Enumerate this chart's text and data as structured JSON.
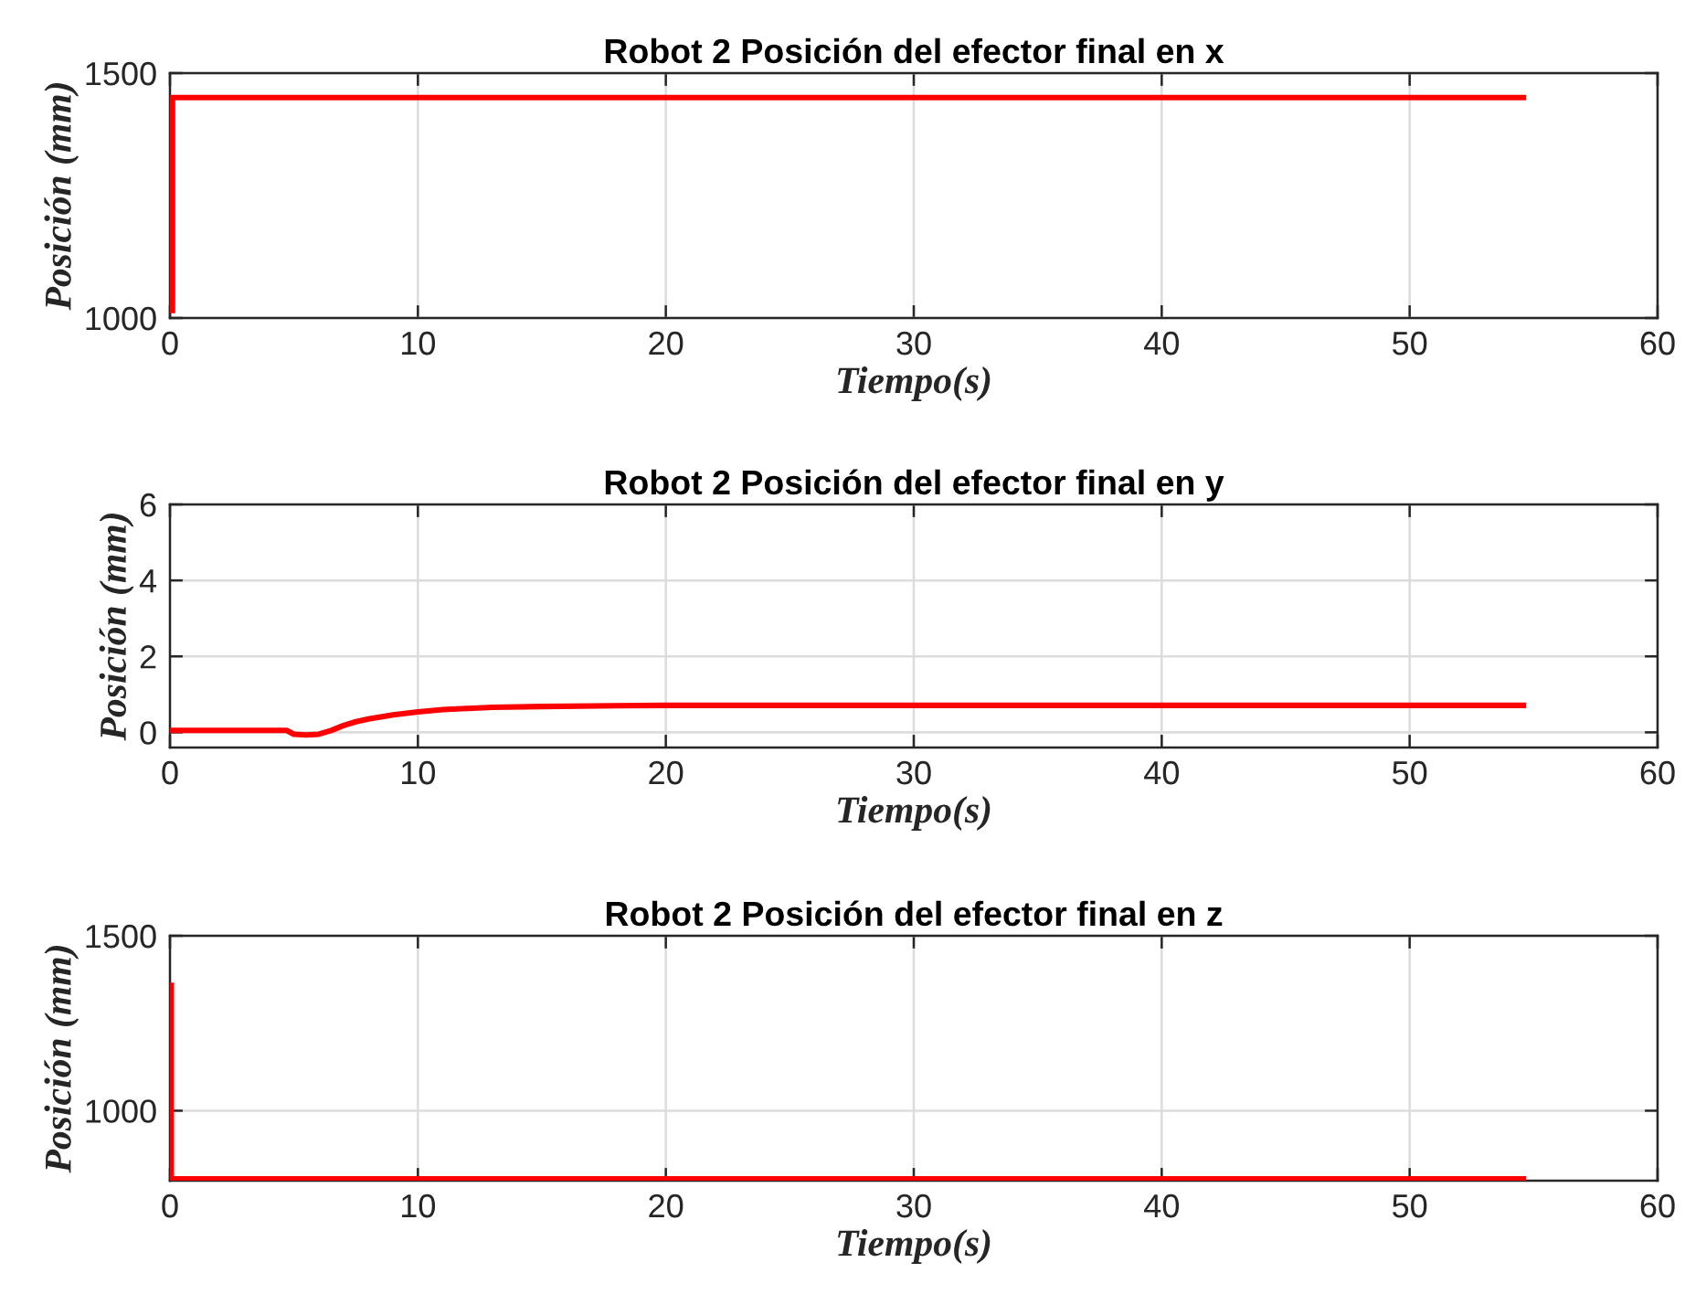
{
  "chart_data": [
    {
      "type": "line",
      "title": "Robot 2 Posición del efector final en x",
      "xlabel": "Tiempo(s)",
      "ylabel": "Posición (mm)",
      "x": [
        0.1,
        0.1,
        10,
        20,
        30,
        40,
        50,
        54.7
      ],
      "series": [
        {
          "color": "#ff0000",
          "values": [
            1010,
            1450,
            1450,
            1450,
            1450,
            1450,
            1450,
            1450
          ]
        }
      ],
      "xlim": [
        0,
        60
      ],
      "xticks": [
        0,
        10,
        20,
        30,
        40,
        50,
        60
      ],
      "ylim": [
        1000,
        1500
      ],
      "yticks": [
        1000,
        1500
      ],
      "grid": true,
      "line_style": "solid",
      "marker": "none"
    },
    {
      "type": "line",
      "title": "Robot 2 Posición del efector final en y",
      "xlabel": "Tiempo(s)",
      "ylabel": "Posición (mm)",
      "x": [
        0,
        4.7,
        5.0,
        5.5,
        6.0,
        6.5,
        7,
        7.5,
        8,
        9,
        10,
        11,
        12,
        13,
        15,
        18,
        20,
        30,
        54.7
      ],
      "series": [
        {
          "color": "#ff0000",
          "values": [
            0.05,
            0.05,
            -0.05,
            -0.07,
            -0.05,
            0.05,
            0.18,
            0.28,
            0.35,
            0.46,
            0.54,
            0.6,
            0.63,
            0.66,
            0.68,
            0.7,
            0.71,
            0.71,
            0.71
          ]
        }
      ],
      "xlim": [
        0,
        60
      ],
      "xticks": [
        0,
        10,
        20,
        30,
        40,
        50,
        60
      ],
      "ylim": [
        -0.4,
        6
      ],
      "yticks": [
        0,
        2,
        4,
        6
      ],
      "grid": true,
      "line_style": "solid",
      "marker": "none"
    },
    {
      "type": "line",
      "title": "Robot 2 Posición del efector final en z",
      "xlabel": "Tiempo(s)",
      "ylabel": "Posición (mm)",
      "x": [
        0.05,
        0.05,
        10,
        20,
        30,
        40,
        50,
        54.7
      ],
      "series": [
        {
          "color": "#ff0000",
          "values": [
            1366,
            805,
            805,
            805,
            805,
            805,
            805,
            805
          ]
        }
      ],
      "xlim": [
        0,
        60
      ],
      "xticks": [
        0,
        10,
        20,
        30,
        40,
        50,
        60
      ],
      "ylim": [
        800,
        1500
      ],
      "yticks": [
        1000,
        1500
      ],
      "grid": true,
      "line_style": "solid",
      "marker": "none"
    }
  ]
}
